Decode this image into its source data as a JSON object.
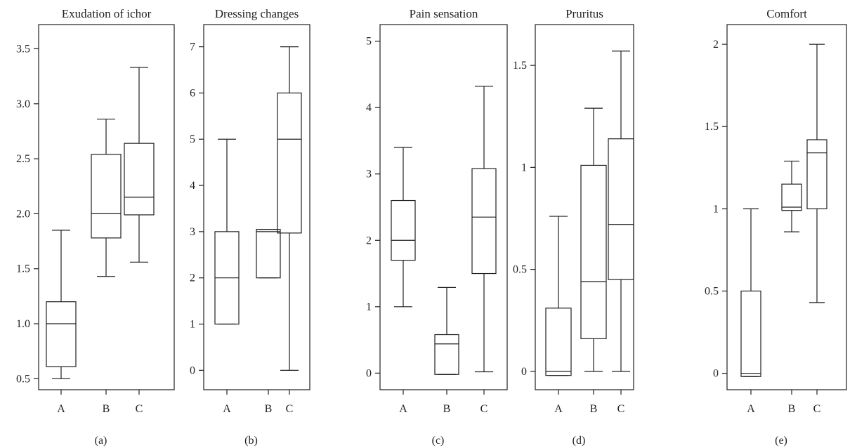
{
  "chart_data": [
    {
      "type": "box",
      "title": "Exudation of ichor",
      "panel_label": "(a)",
      "categories": [
        "A",
        "B",
        "C"
      ],
      "ylim": [
        0.4,
        3.72
      ],
      "yticks": [
        0.5,
        1.0,
        1.5,
        2.0,
        2.5,
        3.0,
        3.5
      ],
      "ytick_labels": [
        "0.5",
        "1.0",
        "1.5",
        "2.0",
        "2.5",
        "3.0",
        "3.5"
      ],
      "boxes": [
        {
          "min": 0.5,
          "q1": 0.61,
          "median": 1.0,
          "q3": 1.2,
          "max": 1.85
        },
        {
          "min": 1.43,
          "q1": 1.78,
          "median": 2.0,
          "q3": 2.54,
          "max": 2.86
        },
        {
          "min": 1.56,
          "q1": 1.99,
          "median": 2.15,
          "q3": 2.64,
          "max": 3.33
        }
      ]
    },
    {
      "type": "box",
      "title": "Dressing changes",
      "panel_label": "(b)",
      "categories": [
        "A",
        "B",
        "C"
      ],
      "ylim": [
        -0.42,
        7.48
      ],
      "yticks": [
        0,
        1,
        2,
        3,
        4,
        5,
        6,
        7
      ],
      "ytick_labels": [
        "0",
        "1",
        "2",
        "3",
        "4",
        "5",
        "6",
        "7"
      ],
      "boxes": [
        {
          "min": 1,
          "q1": 1,
          "median": 2,
          "q3": 3,
          "max": 5
        },
        {
          "min": 2,
          "q1": 2,
          "median": 3,
          "q3": 3.05,
          "max": 3.05
        },
        {
          "min": 0,
          "q1": 2.97,
          "median": 5,
          "q3": 6,
          "max": 7
        }
      ]
    },
    {
      "type": "box",
      "title": "Pain sensation",
      "panel_label": "(c)",
      "categories": [
        "A",
        "B",
        "C"
      ],
      "ylim": [
        -0.25,
        5.25
      ],
      "yticks": [
        0,
        1,
        2,
        3,
        4,
        5
      ],
      "ytick_labels": [
        "0",
        "1",
        "2",
        "3",
        "4",
        "5"
      ],
      "boxes": [
        {
          "min": 1,
          "q1": 1.7,
          "median": 2,
          "q3": 2.6,
          "max": 3.4
        },
        {
          "min": -0.02,
          "q1": -0.02,
          "median": 0.44,
          "q3": 0.58,
          "max": 1.29
        },
        {
          "min": 0.02,
          "q1": 1.5,
          "median": 2.35,
          "q3": 3.08,
          "max": 4.32
        }
      ]
    },
    {
      "type": "box",
      "title": "Pruritus",
      "panel_label": "(d)",
      "categories": [
        "A",
        "B",
        "C"
      ],
      "ylim": [
        -0.09,
        1.7
      ],
      "yticks": [
        0,
        0.5,
        1,
        1.5
      ],
      "ytick_labels": [
        "0",
        "0.5",
        "1",
        "1.5"
      ],
      "boxes": [
        {
          "min": -0.02,
          "q1": -0.02,
          "median": 0.0,
          "q3": 0.31,
          "max": 0.76
        },
        {
          "min": 0.0,
          "q1": 0.16,
          "median": 0.44,
          "q3": 1.01,
          "max": 1.29
        },
        {
          "min": 0.0,
          "q1": 0.45,
          "median": 0.72,
          "q3": 1.14,
          "max": 1.57
        }
      ]
    },
    {
      "type": "box",
      "title": "Comfort",
      "panel_label": "(e)",
      "categories": [
        "A",
        "B",
        "C"
      ],
      "ylim": [
        -0.1,
        2.12
      ],
      "yticks": [
        0,
        0.5,
        1,
        1.5,
        2
      ],
      "ytick_labels": [
        "0",
        "0.5",
        "1",
        "1.5",
        "2"
      ],
      "boxes": [
        {
          "min": -0.02,
          "q1": -0.02,
          "median": 0.0,
          "q3": 0.5,
          "max": 1.0
        },
        {
          "min": 0.86,
          "q1": 0.99,
          "median": 1.01,
          "q3": 1.15,
          "max": 1.29
        },
        {
          "min": 0.43,
          "q1": 1.0,
          "median": 1.34,
          "q3": 1.42,
          "max": 2.0
        }
      ]
    }
  ]
}
